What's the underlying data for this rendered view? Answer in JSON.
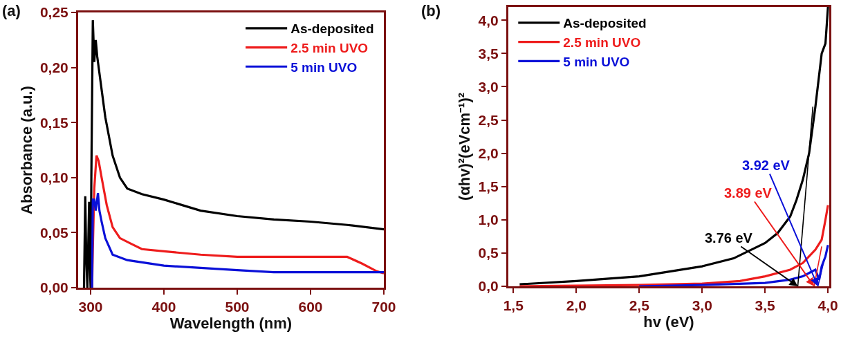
{
  "chart_data": [
    {
      "type": "line",
      "title": "(a)",
      "xlabel": "Wavelength (nm)",
      "ylabel": "Absorbance (a.u.)",
      "legend": "top right",
      "grid": false,
      "xlim": [
        283,
        700
      ],
      "xticks": [
        300,
        400,
        500,
        600,
        700
      ],
      "ylim": [
        0,
        0.25
      ],
      "yticks": [
        {
          "value": 0,
          "label": "0,00"
        },
        {
          "value": 0.05,
          "label": "0,05"
        },
        {
          "value": 0.1,
          "label": "0,10"
        },
        {
          "value": 0.15,
          "label": "0,15"
        },
        {
          "value": 0.2,
          "label": "0,20"
        },
        {
          "value": 0.25,
          "label": "0,25"
        }
      ],
      "series": [
        {
          "name": "As-deposited",
          "color": "#000000",
          "x": [
            291,
            292.7,
            294,
            295.6,
            298,
            299,
            300,
            301,
            303,
            305,
            307,
            309,
            311,
            315,
            320,
            330,
            340,
            350,
            370,
            400,
            450,
            500,
            550,
            600,
            650,
            700
          ],
          "values": [
            0,
            0.083,
            0.03,
            0,
            0.078,
            0.02,
            0,
            0.1,
            0.243,
            0.205,
            0.225,
            0.21,
            0.2,
            0.18,
            0.155,
            0.12,
            0.1,
            0.09,
            0.085,
            0.08,
            0.07,
            0.065,
            0.062,
            0.06,
            0.057,
            0.053
          ]
        },
        {
          "name": "2.5 min UVO",
          "color": "#ee1c1c",
          "x": [
            302,
            303,
            305,
            308,
            311,
            315,
            322,
            330,
            340,
            355,
            370,
            400,
            450,
            500,
            550,
            600,
            650,
            670,
            690,
            700
          ],
          "values": [
            0,
            0.035,
            0.09,
            0.12,
            0.115,
            0.1,
            0.075,
            0.055,
            0.045,
            0.04,
            0.035,
            0.033,
            0.03,
            0.028,
            0.028,
            0.028,
            0.028,
            0.022,
            0.015,
            0.013
          ]
        },
        {
          "name": "5 min UVO",
          "color": "#0a10d8",
          "x": [
            302,
            303,
            305,
            307,
            310,
            312,
            315,
            320,
            330,
            350,
            400,
            450,
            500,
            550,
            600,
            700
          ],
          "values": [
            0,
            0.08,
            0.08,
            0.07,
            0.086,
            0.07,
            0.06,
            0.045,
            0.03,
            0.025,
            0.02,
            0.018,
            0.016,
            0.014,
            0.014,
            0.014
          ]
        }
      ]
    },
    {
      "type": "line",
      "title": "(b)",
      "xlabel": "hv (eV)",
      "ylabel": "(αhv)²(eVcm⁻¹)²",
      "legend": "top left",
      "grid": false,
      "xlim": [
        1.46,
        4.01
      ],
      "xticks": [
        {
          "value": 1.5,
          "label": "1,5"
        },
        {
          "value": 2,
          "label": "2,0"
        },
        {
          "value": 2.5,
          "label": "2,5"
        },
        {
          "value": 3,
          "label": "3,0"
        },
        {
          "value": 3.5,
          "label": "3,5"
        },
        {
          "value": 4,
          "label": "4,0"
        }
      ],
      "ylim": [
        0,
        4.2
      ],
      "yticks": [
        {
          "value": 0,
          "label": "0,0"
        },
        {
          "value": 0.5,
          "label": "0,5"
        },
        {
          "value": 1,
          "label": "1,0"
        },
        {
          "value": 1.5,
          "label": "1,5"
        },
        {
          "value": 2,
          "label": "2,0"
        },
        {
          "value": 2.5,
          "label": "2,5"
        },
        {
          "value": 3,
          "label": "3,0"
        },
        {
          "value": 3.5,
          "label": "3,5"
        },
        {
          "value": 4,
          "label": "4,0"
        }
      ],
      "annotations": [
        {
          "text": "3.76 eV",
          "x": 3.76,
          "y": 0
        },
        {
          "text": "3.89 eV",
          "x": 3.89,
          "y": 0
        },
        {
          "text": "3.92 eV",
          "x": 3.92,
          "y": 0
        }
      ],
      "series": [
        {
          "name": "As-deposited",
          "color": "#000000",
          "x": [
            1.55,
            2.0,
            2.5,
            3.0,
            3.25,
            3.5,
            3.6,
            3.7,
            3.75,
            3.8,
            3.85,
            3.9,
            3.95,
            3.98,
            4.0
          ],
          "values": [
            0.03,
            0.08,
            0.15,
            0.3,
            0.42,
            0.65,
            0.8,
            1.05,
            1.3,
            1.6,
            2.0,
            2.7,
            3.5,
            3.65,
            4.2
          ]
        },
        {
          "name": "2.5 min UVO",
          "color": "#ee1c1c",
          "x": [
            1.55,
            2.5,
            3.0,
            3.3,
            3.5,
            3.7,
            3.8,
            3.85,
            3.9,
            3.95,
            3.98,
            4.0
          ],
          "values": [
            0,
            0.02,
            0.04,
            0.08,
            0.15,
            0.25,
            0.35,
            0.45,
            0.55,
            0.7,
            1.0,
            1.22
          ]
        },
        {
          "name": "5 min UVO",
          "color": "#0a10d8",
          "x": [
            2.5,
            3.0,
            3.5,
            3.7,
            3.8,
            3.85,
            3.9,
            3.93,
            3.95,
            3.98,
            4.0
          ],
          "values": [
            0,
            0.02,
            0.05,
            0.1,
            0.15,
            0.2,
            0.25,
            0.1,
            0.3,
            0.45,
            0.62
          ]
        },
        {
          "type": "line",
          "color": "#000000",
          "x": [
            3.76,
            3.88
          ],
          "values": [
            0,
            2.7
          ]
        },
        {
          "type": "line",
          "color": "#ee1c1c",
          "x": [
            3.89,
            3.95
          ],
          "values": [
            0,
            0.6
          ]
        },
        {
          "type": "line",
          "color": "#0a10d8",
          "x": [
            3.92,
            3.97
          ],
          "values": [
            0,
            0.4
          ]
        }
      ]
    }
  ]
}
